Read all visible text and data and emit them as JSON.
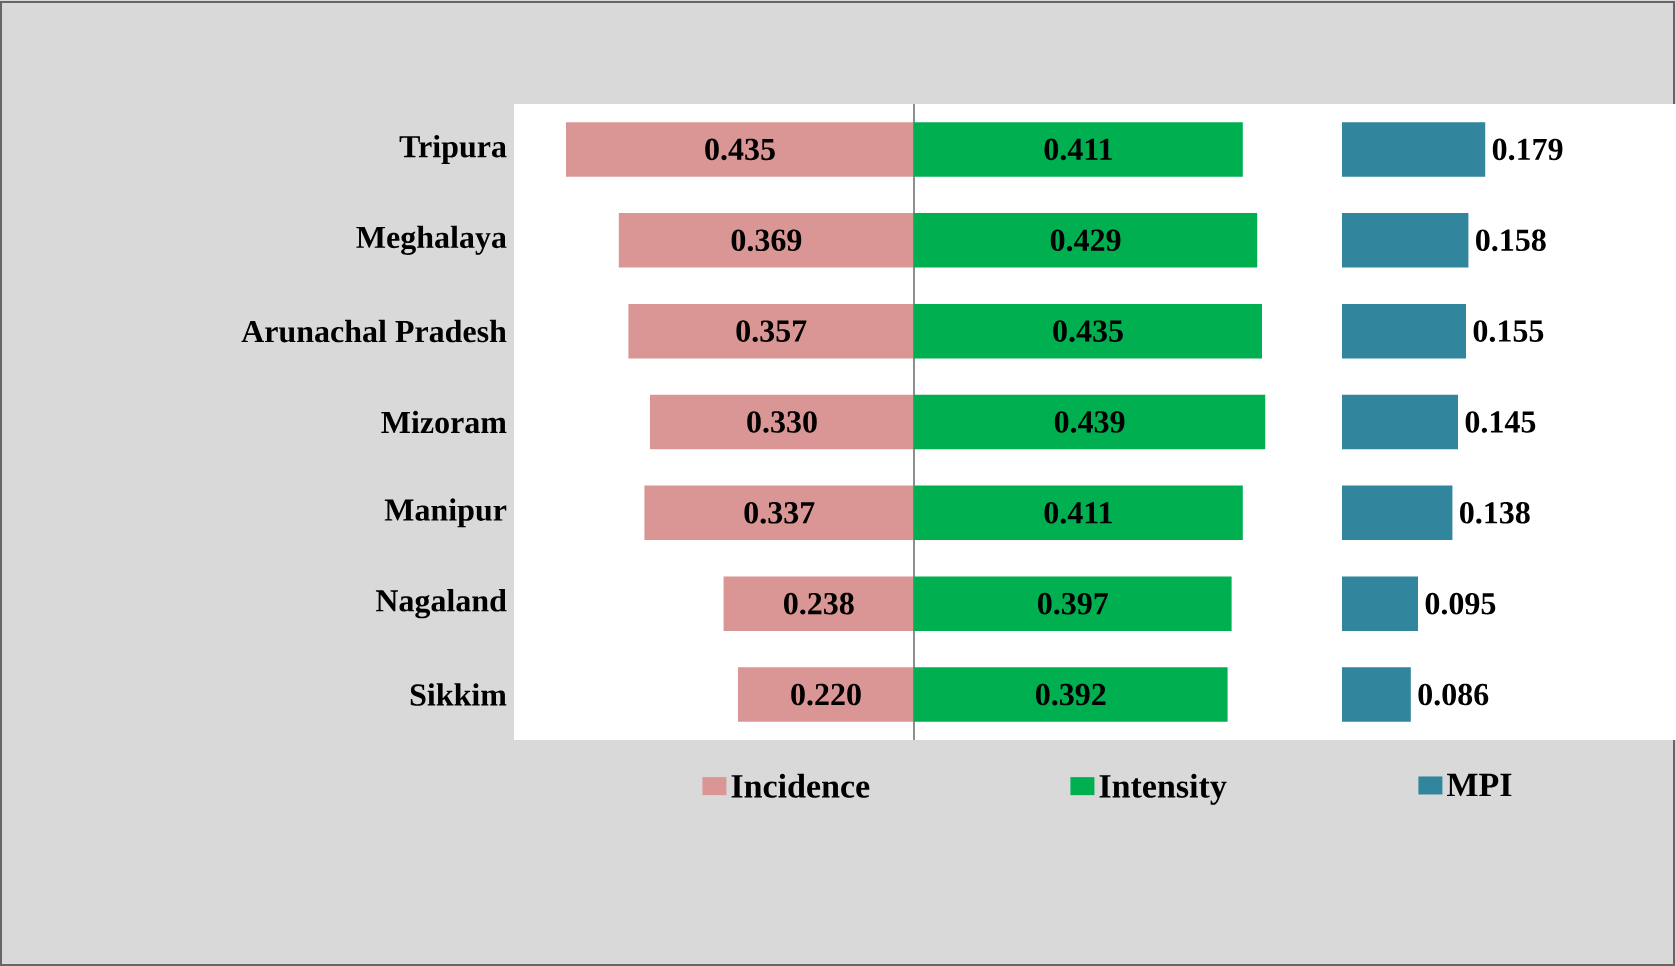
{
  "chart_data": [
    {
      "type": "bar",
      "orientation": "horizontal",
      "categories": [
        "Tripura",
        "Meghalaya",
        "Arunachal Pradesh",
        "Mizoram",
        "Manipur",
        "Nagaland",
        "Sikkim"
      ],
      "xlim": [
        0.5,
        0
      ],
      "tick_labels": "y",
      "legend": "bottom",
      "series": [
        {
          "name": "Incidence",
          "color": "#d99694",
          "values": [
            0.435,
            0.369,
            0.357,
            0.33,
            0.337,
            0.238,
            0.22
          ],
          "value_labels": [
            "0.435",
            "0.369",
            "0.357",
            "0.330",
            "0.337",
            "0.238",
            "0.220"
          ]
        }
      ]
    },
    {
      "type": "bar",
      "orientation": "horizontal",
      "categories": [
        null,
        null,
        null,
        null,
        null,
        null,
        null
      ],
      "tick_labels": false,
      "legend": "bottom",
      "series": [
        {
          "name": "Intensity",
          "color": "#00b050",
          "values": [
            0.411,
            0.429,
            0.435,
            0.439,
            0.411,
            0.397,
            0.392
          ],
          "value_labels": [
            "0.411",
            "0.429",
            "0.435",
            "0.439",
            "0.411",
            "0.397",
            "0.392"
          ]
        }
      ]
    },
    {
      "type": "bar",
      "orientation": "horizontal",
      "categories": [
        null,
        null,
        null,
        null,
        null,
        null,
        null
      ],
      "tick_labels": false,
      "legend": "bottom",
      "series": [
        {
          "name": "MPI",
          "color": "#31859c",
          "values": [
            0.179,
            0.158,
            0.155,
            0.145,
            0.138,
            0.095,
            0.086
          ],
          "value_labels": [
            "0.179",
            "0.158",
            "0.155",
            "0.145",
            "0.138",
            "0.095",
            "0.086"
          ]
        }
      ]
    }
  ]
}
